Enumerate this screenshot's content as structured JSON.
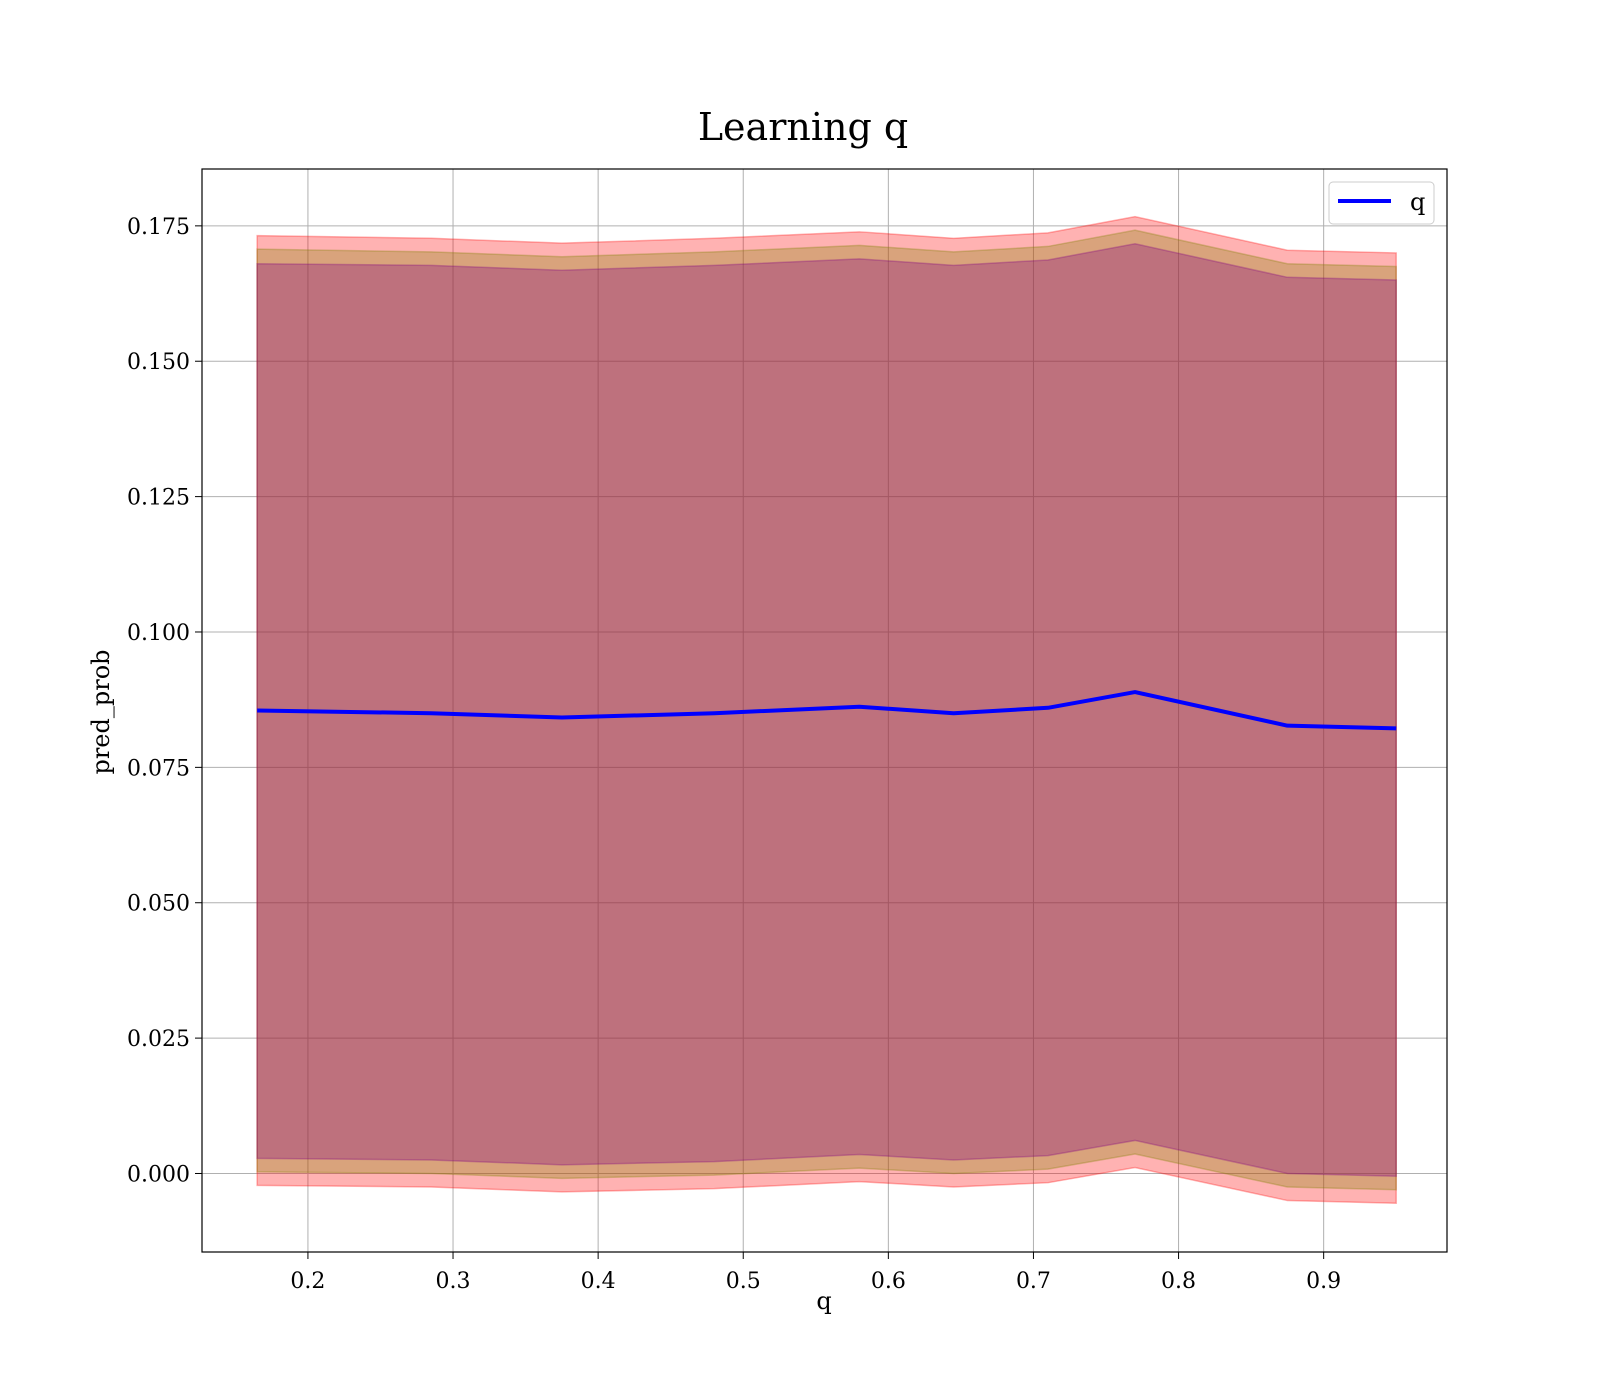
{
  "chart_data": {
    "type": "line",
    "title": "Learning q",
    "xlabel": "q",
    "ylabel": "pred_prob",
    "xlim": [
      0.127,
      0.985
    ],
    "ylim": [
      -0.0145,
      0.1855
    ],
    "xticks": [
      0.2,
      0.3,
      0.4,
      0.5,
      0.6,
      0.7,
      0.8,
      0.9
    ],
    "xtick_labels": [
      "0.2",
      "0.3",
      "0.4",
      "0.5",
      "0.6",
      "0.7",
      "0.8",
      "0.9"
    ],
    "yticks": [
      0.0,
      0.025,
      0.05,
      0.075,
      0.1,
      0.125,
      0.15,
      0.175
    ],
    "ytick_labels": [
      "0.000",
      "0.025",
      "0.050",
      "0.075",
      "0.100",
      "0.125",
      "0.150",
      "0.175"
    ],
    "grid": true,
    "legend_position": "top-right",
    "x": [
      0.165,
      0.285,
      0.375,
      0.48,
      0.58,
      0.645,
      0.71,
      0.77,
      0.875,
      0.95
    ],
    "series": [
      {
        "name": "q",
        "color": "#0000ff",
        "values": [
          0.0855,
          0.085,
          0.0842,
          0.085,
          0.0862,
          0.085,
          0.086,
          0.0889,
          0.0827,
          0.0822
        ]
      }
    ],
    "bands": [
      {
        "color": "#ff0000",
        "opacity": 0.3,
        "lower": [
          -0.0022,
          -0.0025,
          -0.0034,
          -0.0028,
          -0.0015,
          -0.0025,
          -0.0017,
          0.0011,
          -0.005,
          -0.0055
        ],
        "upper": [
          0.1732,
          0.1727,
          0.1718,
          0.1727,
          0.1739,
          0.1727,
          0.1737,
          0.1767,
          0.1705,
          0.17
        ]
      },
      {
        "color": "#808000",
        "opacity": 0.3,
        "lower": [
          0.0003,
          0.0,
          -0.0009,
          -0.0003,
          0.001,
          0.0,
          0.0008,
          0.0036,
          -0.0025,
          -0.003
        ],
        "upper": [
          0.1707,
          0.1702,
          0.1693,
          0.1702,
          0.1714,
          0.1702,
          0.1712,
          0.1742,
          0.168,
          0.1675
        ]
      },
      {
        "color": "#800080",
        "opacity": 0.3,
        "lower": [
          0.0028,
          0.0025,
          0.0016,
          0.0022,
          0.0035,
          0.0025,
          0.0033,
          0.0061,
          0.0,
          -0.0005
        ],
        "upper": [
          0.168,
          0.1677,
          0.1668,
          0.1677,
          0.1689,
          0.1677,
          0.1687,
          0.1717,
          0.1655,
          0.165
        ]
      }
    ]
  }
}
